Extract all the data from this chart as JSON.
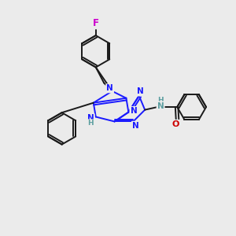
{
  "background_color": "#ebebeb",
  "bond_color": "#1a1aff",
  "atom_colors": {
    "N": "#1a1aff",
    "O": "#cc0000",
    "F": "#cc00cc",
    "H": "#5c9ea0",
    "C": "#1a1aff"
  },
  "figsize": [
    3.0,
    3.0
  ],
  "dpi": 100,
  "lw": 1.4,
  "inner_sep": 0.07
}
